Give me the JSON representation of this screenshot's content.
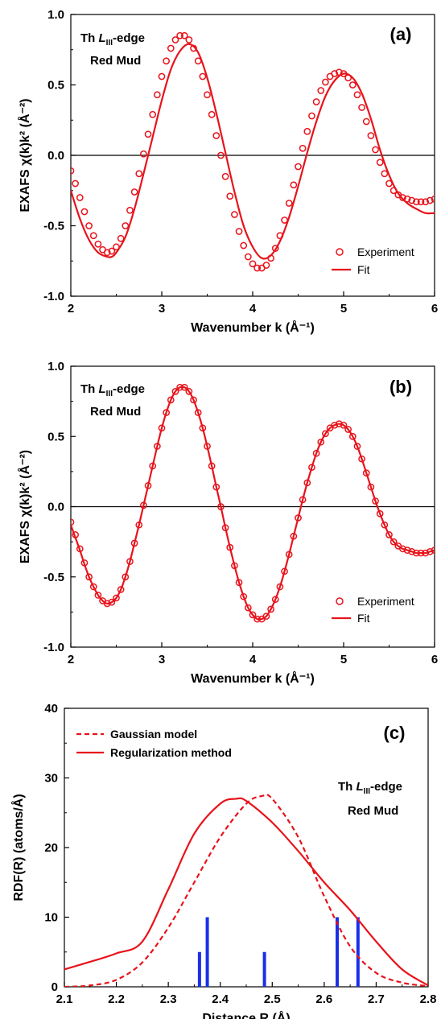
{
  "chart_data": [
    {
      "panel": "(a)",
      "type": "line",
      "xlabel": "Wavenumber k (Å⁻¹)",
      "ylabel": "EXAFS χ(k)k² (Å⁻²)",
      "xlim": [
        2,
        6
      ],
      "ylim": [
        -1.0,
        1.0
      ],
      "xticks": [
        "2",
        "3",
        "4",
        "5",
        "6"
      ],
      "yticks": [
        "-1.0",
        "-0.5",
        "0.0",
        "0.5",
        "1.0"
      ],
      "annotation_line1": "Th L",
      "annotation_sub": "III",
      "annotation_suffix": "-edge",
      "annotation_line2": "Red Mud",
      "zero_line": true,
      "series": [
        {
          "name": "Experiment",
          "style": "open-circle",
          "color": "#e8131b",
          "x": [
            2.0,
            2.05,
            2.1,
            2.15,
            2.2,
            2.25,
            2.3,
            2.35,
            2.4,
            2.45,
            2.5,
            2.55,
            2.6,
            2.65,
            2.7,
            2.75,
            2.8,
            2.85,
            2.9,
            2.95,
            3.0,
            3.05,
            3.1,
            3.15,
            3.2,
            3.25,
            3.3,
            3.35,
            3.4,
            3.45,
            3.5,
            3.55,
            3.6,
            3.65,
            3.7,
            3.75,
            3.8,
            3.85,
            3.9,
            3.95,
            4.0,
            4.05,
            4.1,
            4.15,
            4.2,
            4.25,
            4.3,
            4.35,
            4.4,
            4.45,
            4.5,
            4.55,
            4.6,
            4.65,
            4.7,
            4.75,
            4.8,
            4.85,
            4.9,
            4.95,
            5.0,
            5.05,
            5.1,
            5.15,
            5.2,
            5.25,
            5.3,
            5.35,
            5.4,
            5.45,
            5.5,
            5.55,
            5.6,
            5.65,
            5.7,
            5.75,
            5.8,
            5.85,
            5.9,
            5.95,
            6.0
          ],
          "y": [
            -0.11,
            -0.2,
            -0.3,
            -0.4,
            -0.5,
            -0.57,
            -0.63,
            -0.67,
            -0.69,
            -0.68,
            -0.65,
            -0.59,
            -0.5,
            -0.39,
            -0.26,
            -0.13,
            0.01,
            0.15,
            0.29,
            0.43,
            0.56,
            0.67,
            0.76,
            0.82,
            0.85,
            0.85,
            0.82,
            0.76,
            0.67,
            0.56,
            0.43,
            0.29,
            0.14,
            0.0,
            -0.15,
            -0.29,
            -0.42,
            -0.54,
            -0.64,
            -0.72,
            -0.77,
            -0.8,
            -0.8,
            -0.78,
            -0.73,
            -0.66,
            -0.57,
            -0.46,
            -0.34,
            -0.21,
            -0.08,
            0.05,
            0.17,
            0.28,
            0.38,
            0.46,
            0.52,
            0.56,
            0.58,
            0.59,
            0.58,
            0.55,
            0.5,
            0.43,
            0.34,
            0.24,
            0.14,
            0.04,
            -0.05,
            -0.13,
            -0.2,
            -0.25,
            -0.28,
            -0.3,
            -0.31,
            -0.32,
            -0.33,
            -0.33,
            -0.33,
            -0.32,
            -0.31
          ]
        },
        {
          "name": "Fit",
          "style": "solid",
          "color": "#e8131b",
          "x": [
            2.0,
            2.1,
            2.2,
            2.3,
            2.4,
            2.45,
            2.5,
            2.6,
            2.7,
            2.8,
            2.9,
            3.0,
            3.1,
            3.2,
            3.3,
            3.4,
            3.5,
            3.6,
            3.7,
            3.8,
            3.9,
            4.0,
            4.1,
            4.2,
            4.3,
            4.4,
            4.5,
            4.6,
            4.7,
            4.8,
            4.9,
            5.0,
            5.1,
            5.2,
            5.3,
            5.4,
            5.5,
            5.6,
            5.7,
            5.8,
            5.9,
            6.0
          ],
          "y": [
            -0.25,
            -0.45,
            -0.6,
            -0.69,
            -0.72,
            -0.72,
            -0.69,
            -0.58,
            -0.38,
            -0.13,
            0.13,
            0.39,
            0.61,
            0.74,
            0.79,
            0.73,
            0.55,
            0.3,
            0.02,
            -0.26,
            -0.5,
            -0.65,
            -0.73,
            -0.71,
            -0.61,
            -0.44,
            -0.22,
            0.02,
            0.24,
            0.42,
            0.53,
            0.58,
            0.55,
            0.44,
            0.26,
            0.04,
            -0.14,
            -0.27,
            -0.34,
            -0.38,
            -0.41,
            -0.41
          ]
        }
      ],
      "legend": [
        {
          "label": "Experiment",
          "marker": "circle"
        },
        {
          "label": "Fit",
          "marker": "line"
        }
      ],
      "legend_position": "bottom-right"
    },
    {
      "panel": "(b)",
      "type": "line",
      "xlabel": "Wavenumber k (Å⁻¹)",
      "ylabel": "EXAFS χ(k)k² (Å⁻²)",
      "xlim": [
        2,
        6
      ],
      "ylim": [
        -1.0,
        1.0
      ],
      "xticks": [
        "2",
        "3",
        "4",
        "5",
        "6"
      ],
      "yticks": [
        "-1.0",
        "-0.5",
        "0.0",
        "0.5",
        "1.0"
      ],
      "annotation_line1": "Th L",
      "annotation_sub": "III",
      "annotation_suffix": "-edge",
      "annotation_line2": "Red Mud",
      "zero_line": true,
      "series": [
        {
          "name": "Experiment",
          "style": "open-circle",
          "color": "#e8131b",
          "x": [
            2.0,
            2.05,
            2.1,
            2.15,
            2.2,
            2.25,
            2.3,
            2.35,
            2.4,
            2.45,
            2.5,
            2.55,
            2.6,
            2.65,
            2.7,
            2.75,
            2.8,
            2.85,
            2.9,
            2.95,
            3.0,
            3.05,
            3.1,
            3.15,
            3.2,
            3.25,
            3.3,
            3.35,
            3.4,
            3.45,
            3.5,
            3.55,
            3.6,
            3.65,
            3.7,
            3.75,
            3.8,
            3.85,
            3.9,
            3.95,
            4.0,
            4.05,
            4.1,
            4.15,
            4.2,
            4.25,
            4.3,
            4.35,
            4.4,
            4.45,
            4.5,
            4.55,
            4.6,
            4.65,
            4.7,
            4.75,
            4.8,
            4.85,
            4.9,
            4.95,
            5.0,
            5.05,
            5.1,
            5.15,
            5.2,
            5.25,
            5.3,
            5.35,
            5.4,
            5.45,
            5.5,
            5.55,
            5.6,
            5.65,
            5.7,
            5.75,
            5.8,
            5.85,
            5.9,
            5.95,
            6.0
          ],
          "y": [
            -0.11,
            -0.2,
            -0.3,
            -0.4,
            -0.5,
            -0.57,
            -0.63,
            -0.67,
            -0.69,
            -0.68,
            -0.65,
            -0.59,
            -0.5,
            -0.39,
            -0.26,
            -0.13,
            0.01,
            0.15,
            0.29,
            0.43,
            0.56,
            0.67,
            0.76,
            0.82,
            0.85,
            0.85,
            0.82,
            0.76,
            0.67,
            0.56,
            0.43,
            0.29,
            0.14,
            0.0,
            -0.15,
            -0.29,
            -0.42,
            -0.54,
            -0.64,
            -0.72,
            -0.77,
            -0.8,
            -0.8,
            -0.78,
            -0.73,
            -0.66,
            -0.57,
            -0.46,
            -0.34,
            -0.21,
            -0.08,
            0.05,
            0.17,
            0.28,
            0.38,
            0.46,
            0.52,
            0.56,
            0.58,
            0.59,
            0.58,
            0.55,
            0.5,
            0.43,
            0.34,
            0.24,
            0.14,
            0.04,
            -0.05,
            -0.13,
            -0.2,
            -0.25,
            -0.28,
            -0.3,
            -0.31,
            -0.32,
            -0.33,
            -0.33,
            -0.33,
            -0.32,
            -0.31
          ]
        },
        {
          "name": "Fit",
          "style": "solid",
          "color": "#e8131b",
          "x": [
            2.0,
            2.05,
            2.1,
            2.15,
            2.2,
            2.25,
            2.3,
            2.35,
            2.4,
            2.45,
            2.5,
            2.55,
            2.6,
            2.65,
            2.7,
            2.75,
            2.8,
            2.85,
            2.9,
            2.95,
            3.0,
            3.05,
            3.1,
            3.15,
            3.2,
            3.25,
            3.3,
            3.35,
            3.4,
            3.45,
            3.5,
            3.55,
            3.6,
            3.65,
            3.7,
            3.75,
            3.8,
            3.85,
            3.9,
            3.95,
            4.0,
            4.05,
            4.1,
            4.15,
            4.2,
            4.25,
            4.3,
            4.35,
            4.4,
            4.45,
            4.5,
            4.55,
            4.6,
            4.65,
            4.7,
            4.75,
            4.8,
            4.85,
            4.9,
            4.95,
            5.0,
            5.05,
            5.1,
            5.15,
            5.2,
            5.25,
            5.3,
            5.35,
            5.4,
            5.45,
            5.5,
            5.55,
            5.6,
            5.65,
            5.7,
            5.75,
            5.8,
            5.85,
            5.9,
            5.95,
            6.0
          ],
          "y": [
            -0.13,
            -0.22,
            -0.31,
            -0.41,
            -0.5,
            -0.57,
            -0.63,
            -0.67,
            -0.69,
            -0.68,
            -0.65,
            -0.59,
            -0.5,
            -0.39,
            -0.26,
            -0.13,
            0.01,
            0.15,
            0.29,
            0.43,
            0.56,
            0.67,
            0.76,
            0.82,
            0.85,
            0.85,
            0.82,
            0.76,
            0.67,
            0.56,
            0.43,
            0.29,
            0.14,
            0.0,
            -0.15,
            -0.29,
            -0.42,
            -0.54,
            -0.64,
            -0.72,
            -0.77,
            -0.8,
            -0.8,
            -0.78,
            -0.73,
            -0.66,
            -0.57,
            -0.46,
            -0.34,
            -0.21,
            -0.08,
            0.05,
            0.17,
            0.28,
            0.38,
            0.46,
            0.52,
            0.56,
            0.58,
            0.59,
            0.58,
            0.55,
            0.5,
            0.43,
            0.34,
            0.24,
            0.14,
            0.04,
            -0.05,
            -0.13,
            -0.2,
            -0.25,
            -0.28,
            -0.3,
            -0.31,
            -0.32,
            -0.33,
            -0.33,
            -0.33,
            -0.32,
            -0.31
          ]
        }
      ],
      "legend": [
        {
          "label": "Experiment",
          "marker": "circle"
        },
        {
          "label": "Fit",
          "marker": "line"
        }
      ],
      "legend_position": "bottom-right"
    },
    {
      "panel": "(c)",
      "type": "line",
      "xlabel": "Distance R (Å)",
      "ylabel": "RDF(R) (atoms/Å)",
      "xlim": [
        2.1,
        2.8
      ],
      "ylim": [
        0,
        40
      ],
      "xticks": [
        "2.1",
        "2.2",
        "2.3",
        "2.4",
        "2.5",
        "2.6",
        "2.7",
        "2.8"
      ],
      "yticks": [
        "0",
        "10",
        "20",
        "30",
        "40"
      ],
      "annotation_line1": "Th L",
      "annotation_sub": "III",
      "annotation_suffix": "-edge",
      "annotation_line2": "Red Mud",
      "series": [
        {
          "name": "Gaussian model",
          "style": "dashed",
          "color": "#e8131b",
          "x": [
            2.1,
            2.15,
            2.2,
            2.25,
            2.3,
            2.35,
            2.4,
            2.45,
            2.48,
            2.5,
            2.55,
            2.6,
            2.65,
            2.7,
            2.75,
            2.8
          ],
          "y": [
            0.0,
            0.2,
            1.0,
            3.5,
            8.5,
            15.0,
            21.5,
            26.3,
            27.4,
            27.0,
            21.5,
            13.0,
            5.8,
            2.0,
            0.6,
            0.1
          ]
        },
        {
          "name": "Regularization method",
          "style": "solid",
          "color": "#e8131b",
          "x": [
            2.1,
            2.15,
            2.2,
            2.25,
            2.3,
            2.35,
            2.4,
            2.43,
            2.45,
            2.5,
            2.55,
            2.6,
            2.65,
            2.7,
            2.75,
            2.8
          ],
          "y": [
            2.5,
            3.6,
            4.8,
            6.5,
            14.0,
            22.0,
            26.3,
            27.0,
            26.7,
            23.6,
            19.5,
            15.0,
            11.0,
            6.5,
            2.5,
            0.2
          ]
        }
      ],
      "bars": {
        "color": "#1a2fe8",
        "x": [
          2.36,
          2.375,
          2.485,
          2.625,
          2.665
        ],
        "height": [
          5,
          10,
          5,
          10,
          10
        ]
      },
      "legend": [
        {
          "label": "Gaussian model",
          "marker": "dashed"
        },
        {
          "label": "Regularization method",
          "marker": "line"
        }
      ],
      "legend_position": "top-left"
    }
  ]
}
